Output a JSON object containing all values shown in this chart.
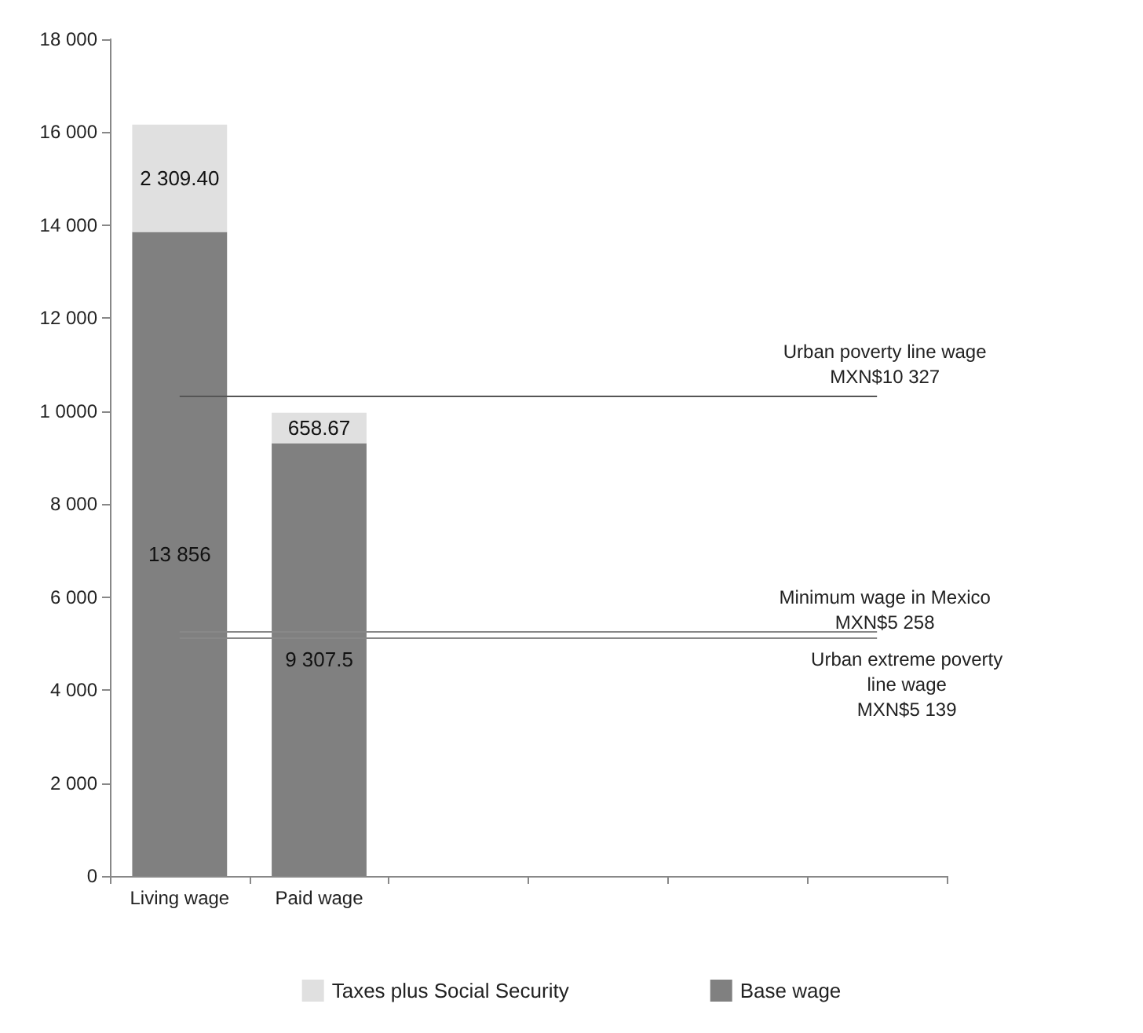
{
  "chart_data": {
    "type": "bar",
    "stacked": true,
    "categories": [
      "Living wage",
      "Paid wage",
      null,
      null,
      null,
      null
    ],
    "series": [
      {
        "name": "Base wage",
        "color": "#808080",
        "values": [
          13856,
          9307.5,
          null,
          null,
          null,
          null
        ],
        "value_labels": [
          "13 856",
          "9 307.5",
          null,
          null,
          null,
          null
        ]
      },
      {
        "name": "Taxes plus Social Security",
        "color": "#e0e0e0",
        "values": [
          2309.4,
          658.67,
          null,
          null,
          null,
          null
        ],
        "value_labels": [
          "2 309.40",
          "658.67",
          null,
          null,
          null,
          null
        ]
      }
    ],
    "ylim": [
      0,
      18000
    ],
    "yticks": [
      0,
      {
        "value": 2000,
        "label": "2 000"
      },
      {
        "value": 4000,
        "label": "4 000"
      },
      {
        "value": 6000,
        "label": "6 000"
      },
      {
        "value": 8000,
        "label": "8 000"
      },
      {
        "value": 10000,
        "label": "1 0000"
      },
      {
        "value": 12000,
        "label": "12 000"
      },
      {
        "value": 14000,
        "label": "14 000"
      },
      {
        "value": 16000,
        "label": "16 000"
      },
      {
        "value": 18000,
        "label": "18 000"
      }
    ],
    "ref_lines": [
      {
        "axis": "y",
        "value": 10327,
        "label": "Urban poverty line wage\nMXN$10 327",
        "color": "#555555"
      },
      {
        "axis": "y",
        "value": 5258,
        "label": "Minimum wage in Mexico\nMXN$5 258",
        "color": "#888888"
      },
      {
        "axis": "y",
        "value": 5139,
        "label": "Urban extreme poverty\nline wage\nMXN$5 139",
        "color": "#888888"
      }
    ],
    "grid": false,
    "legend": "bottom"
  }
}
